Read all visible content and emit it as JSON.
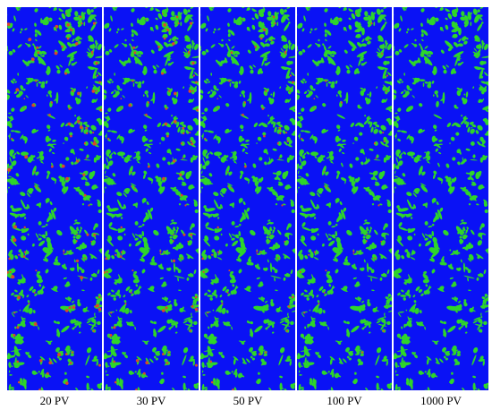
{
  "panels": [
    {
      "label": "20 PV"
    },
    {
      "label": "30 PV"
    },
    {
      "label": "50 PV"
    },
    {
      "label": "100 PV"
    },
    {
      "label": "1000 PV"
    }
  ]
}
